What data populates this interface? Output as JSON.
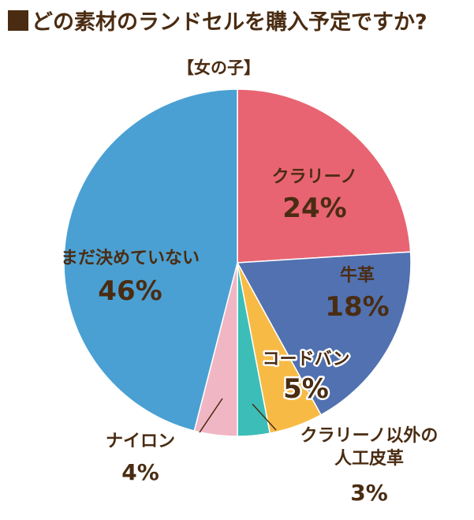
{
  "title": "どの素材のランドセルを購入予定ですか?",
  "subtitle": "【女の子】",
  "chart_data": {
    "type": "pie",
    "title": "どの素材のランドセルを購入予定ですか?",
    "subtitle": "【女の子】",
    "start_angle_deg": 0,
    "direction": "clockwise",
    "unit": "%",
    "slices": [
      {
        "label": "クラリーノ",
        "value": 24,
        "value_label": "24%",
        "color": "#e86472"
      },
      {
        "label": "牛革",
        "value": 18,
        "value_label": "18%",
        "color": "#5171b0"
      },
      {
        "label": "コードバン",
        "value": 5,
        "value_label": "5%",
        "color": "#f7bb45"
      },
      {
        "label": "クラリーノ以外の人工皮革",
        "label_lines": [
          "クラリーノ以外の",
          "人工皮革"
        ],
        "value": 3,
        "value_label": "3%",
        "color": "#3dbdb7"
      },
      {
        "label": "ナイロン",
        "value": 4,
        "value_label": "4%",
        "color": "#f1b6c4"
      },
      {
        "label": "まだ決めていない",
        "value": 46,
        "value_label": "46%",
        "color": "#4aa0d3"
      }
    ]
  }
}
